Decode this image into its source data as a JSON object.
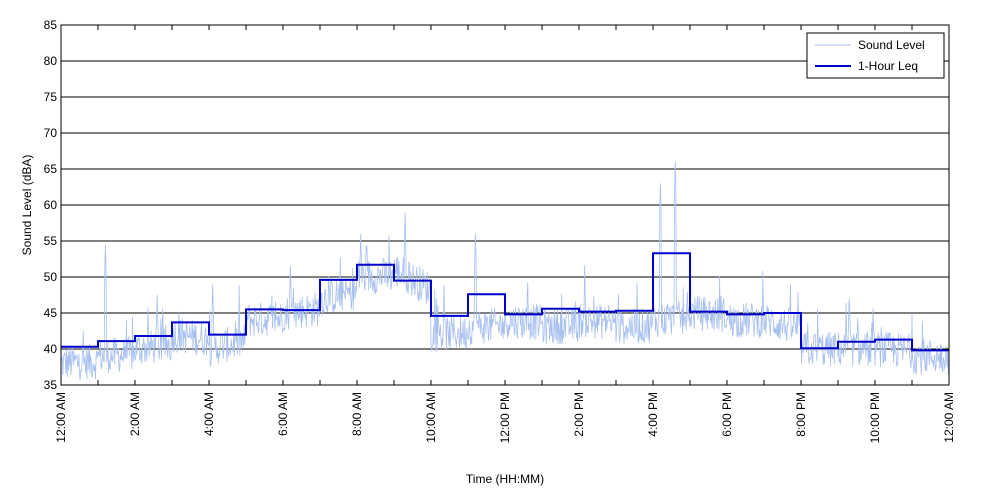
{
  "chart_data": {
    "type": "line",
    "xlabel": "Time (HH:MM)",
    "ylabel": "Sound Level (dBA)",
    "x_range_hours": [
      0,
      24
    ],
    "ylim": [
      35,
      85
    ],
    "y_ticks": [
      35,
      40,
      45,
      50,
      55,
      60,
      65,
      70,
      75,
      80,
      85
    ],
    "x_ticks": [
      {
        "h": 0,
        "label": "12:00 AM"
      },
      {
        "h": 2,
        "label": "2:00 AM"
      },
      {
        "h": 4,
        "label": "4:00 AM"
      },
      {
        "h": 6,
        "label": "6:00 AM"
      },
      {
        "h": 8,
        "label": "8:00 AM"
      },
      {
        "h": 10,
        "label": "10:00 AM"
      },
      {
        "h": 12,
        "label": "12:00 PM"
      },
      {
        "h": 14,
        "label": "2:00 PM"
      },
      {
        "h": 16,
        "label": "4:00 PM"
      },
      {
        "h": 18,
        "label": "6:00 PM"
      },
      {
        "h": 20,
        "label": "8:00 PM"
      },
      {
        "h": 22,
        "label": "10:00 PM"
      },
      {
        "h": 24,
        "label": "12:00 AM"
      }
    ],
    "grid": "horizontal",
    "legend_position": "top-right",
    "series": [
      {
        "name": "Sound Level",
        "color": "#a8c0f0",
        "hourly_typical_dBA": [
          38,
          39,
          40,
          42,
          40,
          44,
          45,
          47,
          50,
          51,
          42,
          43,
          44,
          43,
          44,
          43,
          44,
          45,
          44,
          44,
          40,
          40,
          40,
          39
        ],
        "peaks": [
          {
            "h": 1.2,
            "y": 54.5
          },
          {
            "h": 2.6,
            "y": 47.5
          },
          {
            "h": 4.1,
            "y": 49
          },
          {
            "h": 6.2,
            "y": 51.5
          },
          {
            "h": 8.1,
            "y": 56
          },
          {
            "h": 9.3,
            "y": 59
          },
          {
            "h": 11.2,
            "y": 56
          },
          {
            "h": 16.2,
            "y": 63
          },
          {
            "h": 16.6,
            "y": 66
          },
          {
            "h": 21.3,
            "y": 47
          }
        ]
      },
      {
        "name": "1-Hour Leq",
        "color": "#0000cc",
        "values": [
          40.3,
          41.1,
          41.8,
          43.7,
          42.0,
          45.5,
          45.4,
          49.6,
          51.7,
          49.5,
          44.6,
          47.6,
          44.8,
          45.6,
          45.2,
          45.3,
          53.3,
          45.2,
          44.8,
          45.0,
          40.1,
          41.0,
          41.3,
          39.8
        ]
      }
    ]
  }
}
